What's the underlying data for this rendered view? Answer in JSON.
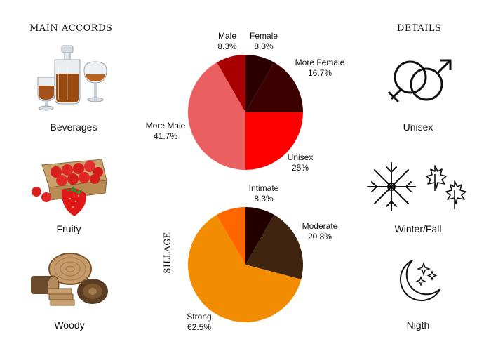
{
  "left_panel": {
    "heading": "MAIN ACCORDS",
    "items": [
      {
        "label": "Beverages",
        "icon": "beverages-decanter-glasses-icon"
      },
      {
        "label": "Fruity",
        "icon": "strawberry-crate-icon"
      },
      {
        "label": "Woody",
        "icon": "wood-logs-icon"
      }
    ]
  },
  "right_panel": {
    "heading": "DETAILS",
    "items": [
      {
        "label": "Unisex",
        "icon": "gender-unisex-icon"
      },
      {
        "label": "Winter/Fall",
        "icon": "snowflake-maple-leaves-icon"
      },
      {
        "label": "Nigth",
        "icon": "moon-stars-icon"
      }
    ]
  },
  "chart_data": [
    {
      "type": "pie",
      "title": "",
      "start": "top",
      "direction": "clockwise",
      "slices": [
        {
          "label": "Female",
          "value": 8.3,
          "pct": "8.3%",
          "color": "#2a0000"
        },
        {
          "label": "More Female",
          "value": 16.7,
          "pct": "16.7%",
          "color": "#3c0000"
        },
        {
          "label": "Unisex",
          "value": 25,
          "pct": "25%",
          "color": "#ff0000"
        },
        {
          "label": "More Male",
          "value": 41.7,
          "pct": "41.7%",
          "color": "#ea5f5f"
        },
        {
          "label": "Male",
          "value": 8.3,
          "pct": "8.3%",
          "color": "#a80000"
        }
      ]
    },
    {
      "type": "pie",
      "title": "SILLAGE",
      "start": "top",
      "direction": "clockwise",
      "slices": [
        {
          "label": "Intimate",
          "value": 8.3,
          "pct": "8.3%",
          "color": "#220000"
        },
        {
          "label": "Moderate",
          "value": 20.8,
          "pct": "20.8%",
          "color": "#3f2410"
        },
        {
          "label": "Strong",
          "value": 62.5,
          "pct": "62.5%",
          "color": "#f28c00"
        },
        {
          "label": "",
          "value": 8.4,
          "pct": "",
          "color": "#ff6600"
        }
      ]
    }
  ]
}
